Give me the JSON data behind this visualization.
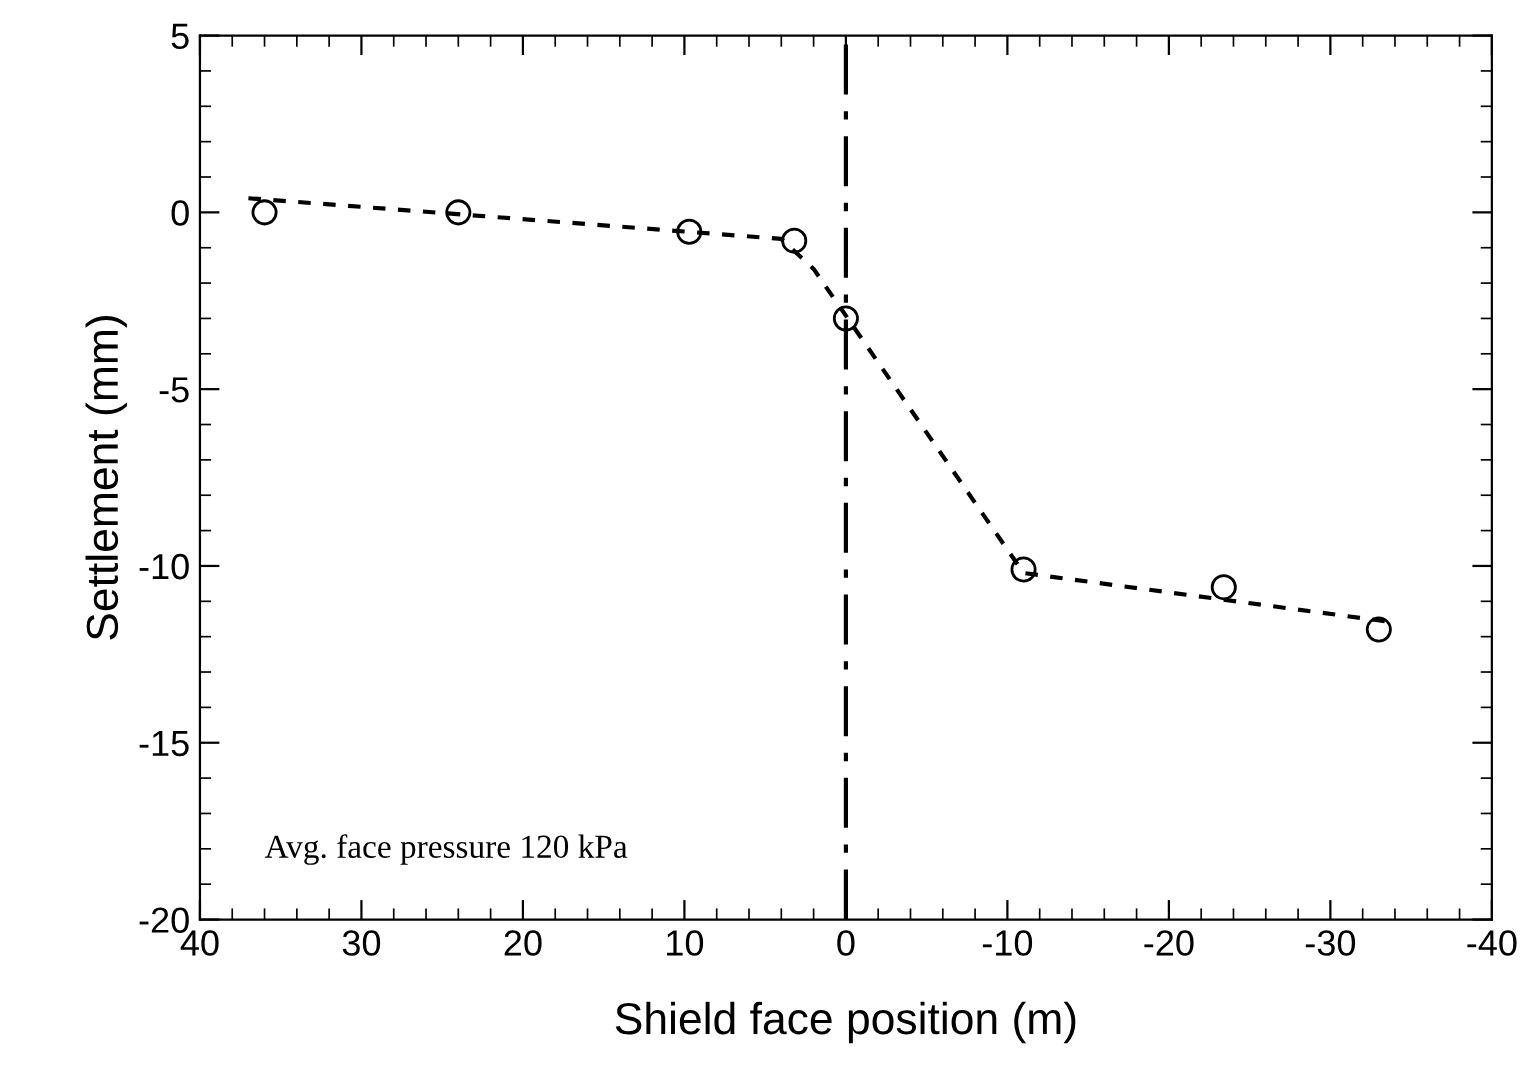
{
  "chart_data": {
    "type": "scatter",
    "xlabel": "Shield face position (m)",
    "ylabel": "Settlement (mm)",
    "annotations": [
      "Avg. face pressure 120 kPa"
    ],
    "series": [
      {
        "color": "#000000",
        "marker": "circle",
        "x": [
          36,
          24,
          9.7,
          3.2,
          0,
          -11,
          -23.4,
          -33
        ],
        "values": [
          0,
          0,
          -0.55,
          -0.8,
          -3,
          -10.1,
          -10.6,
          -11.8
        ]
      },
      {
        "type": "line",
        "color": "#000000",
        "line_style": "dashed",
        "marker": "none",
        "x": [
          37,
          4,
          2,
          -11,
          -34
        ],
        "values": [
          0.4,
          -0.75,
          -1.6,
          -10.2,
          -11.6
        ]
      }
    ],
    "ref_lines": [
      {
        "axis": "x",
        "value": 0,
        "line_style": "dashdot",
        "color": "#000000"
      }
    ],
    "xlim": [
      40,
      -40
    ],
    "xticks": [
      40,
      30,
      20,
      10,
      0,
      -10,
      -20,
      -30,
      -40
    ],
    "ylim": [
      -20,
      5
    ],
    "yticks": [
      -20,
      -15,
      -10,
      -5,
      0,
      5
    ],
    "grid": false,
    "legend": false
  }
}
